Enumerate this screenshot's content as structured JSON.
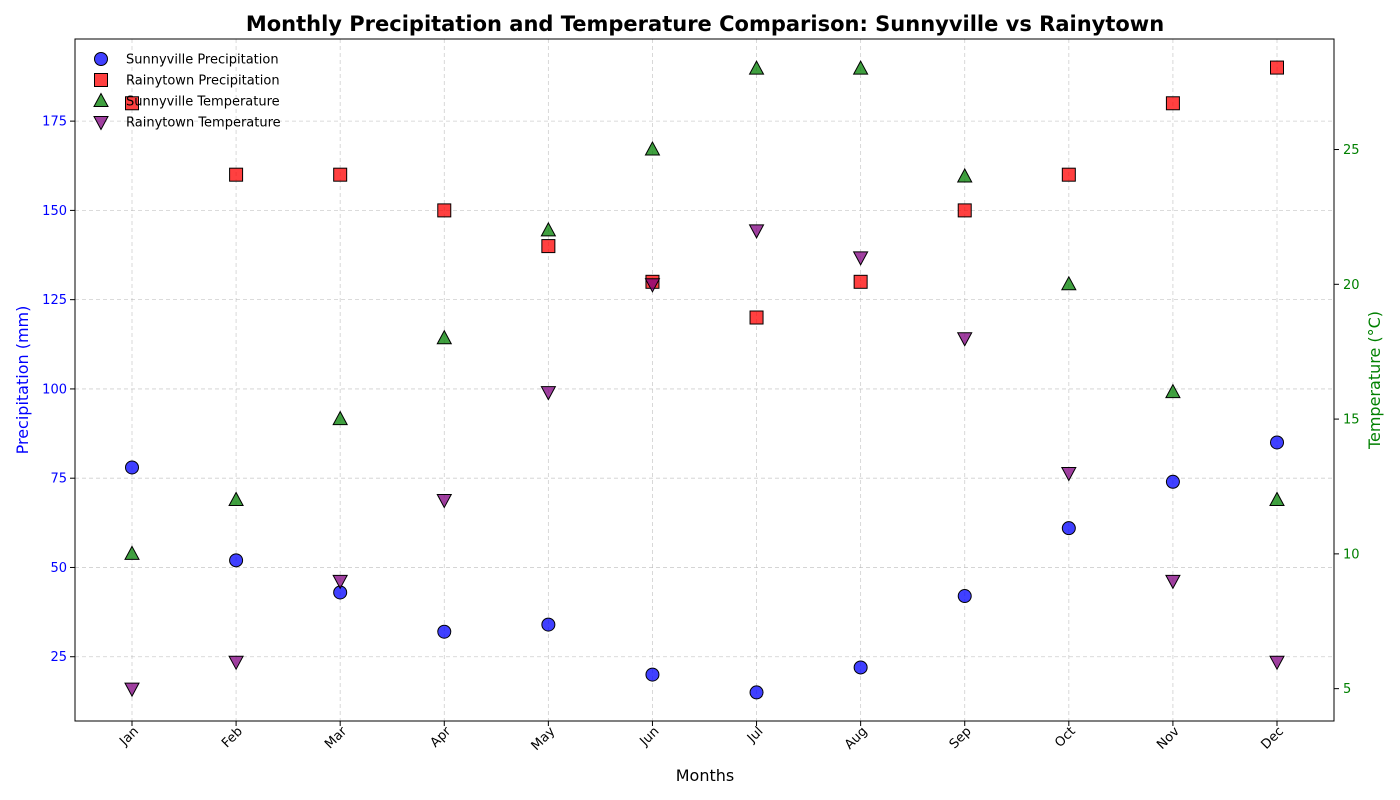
{
  "chart_data": {
    "type": "scatter",
    "title": "Monthly Precipitation and Temperature Comparison: Sunnyville vs Rainytown",
    "xlabel": "Months",
    "ylabel_left": "Precipitation (mm)",
    "ylabel_right": "Temperature (°C)",
    "categories": [
      "Jan",
      "Feb",
      "Mar",
      "Apr",
      "May",
      "Jun",
      "Jul",
      "Aug",
      "Sep",
      "Oct",
      "Nov",
      "Dec"
    ],
    "ylim_left": [
      7,
      198
    ],
    "ylim_right": [
      3.8,
      29.1
    ],
    "yticks_left": [
      25,
      50,
      75,
      100,
      125,
      150,
      175
    ],
    "yticks_right": [
      5,
      10,
      15,
      20,
      25
    ],
    "grid": true,
    "legend_position": "top-left",
    "colors": {
      "left_axis": "#0000ff",
      "right_axis": "#008000"
    },
    "series": [
      {
        "name": "Sunnyville Precipitation",
        "axis": "left",
        "marker": "circle",
        "color": "#0000ff",
        "values": [
          78,
          52,
          43,
          32,
          34,
          20,
          15,
          22,
          42,
          61,
          74,
          85
        ]
      },
      {
        "name": "Rainytown Precipitation",
        "axis": "left",
        "marker": "square",
        "color": "#ff0000",
        "values": [
          180,
          160,
          160,
          150,
          140,
          130,
          120,
          130,
          150,
          160,
          180,
          190
        ]
      },
      {
        "name": "Sunnyville Temperature",
        "axis": "right",
        "marker": "triangle-up",
        "color": "#008000",
        "values": [
          10,
          12,
          15,
          18,
          22,
          25,
          28,
          28,
          24,
          20,
          16,
          12
        ]
      },
      {
        "name": "Rainytown Temperature",
        "axis": "right",
        "marker": "triangle-down",
        "color": "#800080",
        "values": [
          5,
          6,
          9,
          12,
          16,
          20,
          22,
          21,
          18,
          13,
          9,
          6
        ]
      }
    ]
  }
}
